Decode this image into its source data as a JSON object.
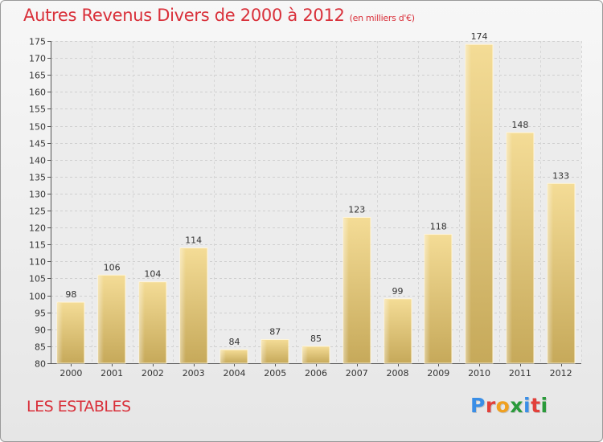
{
  "header": {
    "title": "Autres Revenus Divers de 2000 à 2012",
    "subtitle": "(en milliers d'€)"
  },
  "footer": {
    "place": "LES ESTABLES",
    "logo_text": "Proxiti"
  },
  "colors": {
    "title": "#d9303a",
    "bar_light": "#f4dc96",
    "bar_dark": "#c6a95a",
    "logo": [
      "#3a8ee6",
      "#e2403a",
      "#f0a020",
      "#2a9a3a",
      "#3a8ee6",
      "#e2403a",
      "#2a9a3a"
    ]
  },
  "chart_data": {
    "type": "bar",
    "categories": [
      "2000",
      "2001",
      "2002",
      "2003",
      "2004",
      "2005",
      "2006",
      "2007",
      "2008",
      "2009",
      "2010",
      "2011",
      "2012"
    ],
    "values": [
      98,
      106,
      104,
      114,
      84,
      87,
      85,
      123,
      99,
      118,
      174,
      148,
      133
    ],
    "ylim": [
      80,
      175
    ],
    "yticks": [
      80,
      85,
      90,
      95,
      100,
      105,
      110,
      115,
      120,
      125,
      130,
      135,
      140,
      145,
      150,
      155,
      160,
      165,
      170,
      175
    ],
    "grid": true,
    "data_labels": true
  }
}
